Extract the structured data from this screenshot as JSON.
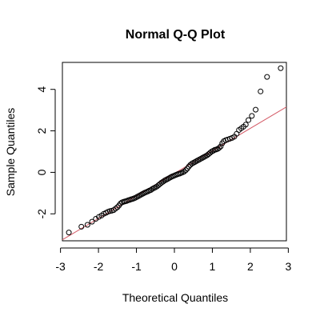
{
  "chart_data": {
    "type": "scatter",
    "title": "Normal Q-Q Plot",
    "xlabel": "Theoretical Quantiles",
    "ylabel": "Sample Quantiles",
    "xlim": [
      -2.95,
      2.95
    ],
    "ylim": [
      -3.3,
      5.3
    ],
    "x_ticks": [
      -3,
      -2,
      -1,
      0,
      1,
      2,
      3
    ],
    "x_tick_labels": [
      "-3",
      "-2",
      "-1",
      "0",
      "1",
      "2",
      "3"
    ],
    "y_ticks": [
      -2,
      0,
      2,
      4
    ],
    "y_tick_labels": [
      "-2",
      "0",
      "2",
      "4"
    ],
    "grid": false,
    "legend": "none",
    "series": [
      {
        "marker": "open-circle",
        "color": "#000000",
        "points": [
          [
            -2.78,
            -2.9
          ],
          [
            -2.45,
            -2.62
          ],
          [
            -2.29,
            -2.53
          ],
          [
            -2.17,
            -2.38
          ],
          [
            -2.07,
            -2.24
          ],
          [
            -1.99,
            -2.15
          ],
          [
            -1.92,
            -2.08
          ],
          [
            -1.86,
            -2.0
          ],
          [
            -1.8,
            -1.95
          ],
          [
            -1.75,
            -1.9
          ],
          [
            -1.7,
            -1.87
          ],
          [
            -1.65,
            -1.85
          ],
          [
            -1.6,
            -1.82
          ],
          [
            -1.55,
            -1.75
          ],
          [
            -1.5,
            -1.68
          ],
          [
            -1.46,
            -1.6
          ],
          [
            -1.42,
            -1.5
          ],
          [
            -1.38,
            -1.45
          ],
          [
            -1.34,
            -1.42
          ],
          [
            -1.3,
            -1.4
          ],
          [
            -1.26,
            -1.38
          ],
          [
            -1.22,
            -1.35
          ],
          [
            -1.18,
            -1.33
          ],
          [
            -1.14,
            -1.3
          ],
          [
            -1.1,
            -1.28
          ],
          [
            -1.06,
            -1.25
          ],
          [
            -1.02,
            -1.22
          ],
          [
            -0.98,
            -1.18
          ],
          [
            -0.94,
            -1.14
          ],
          [
            -0.9,
            -1.1
          ],
          [
            -0.86,
            -1.06
          ],
          [
            -0.82,
            -1.02
          ],
          [
            -0.78,
            -0.98
          ],
          [
            -0.74,
            -0.95
          ],
          [
            -0.7,
            -0.92
          ],
          [
            -0.66,
            -0.88
          ],
          [
            -0.62,
            -0.85
          ],
          [
            -0.58,
            -0.8
          ],
          [
            -0.54,
            -0.76
          ],
          [
            -0.5,
            -0.72
          ],
          [
            -0.46,
            -0.68
          ],
          [
            -0.42,
            -0.62
          ],
          [
            -0.38,
            -0.56
          ],
          [
            -0.34,
            -0.5
          ],
          [
            -0.3,
            -0.45
          ],
          [
            -0.26,
            -0.4
          ],
          [
            -0.22,
            -0.36
          ],
          [
            -0.18,
            -0.32
          ],
          [
            -0.14,
            -0.28
          ],
          [
            -0.1,
            -0.24
          ],
          [
            -0.06,
            -0.2
          ],
          [
            -0.02,
            -0.17
          ],
          [
            0.02,
            -0.14
          ],
          [
            0.06,
            -0.11
          ],
          [
            0.1,
            -0.08
          ],
          [
            0.14,
            -0.06
          ],
          [
            0.18,
            -0.03
          ],
          [
            0.22,
            0.0
          ],
          [
            0.26,
            0.04
          ],
          [
            0.3,
            0.1
          ],
          [
            0.34,
            0.18
          ],
          [
            0.38,
            0.28
          ],
          [
            0.42,
            0.36
          ],
          [
            0.46,
            0.42
          ],
          [
            0.5,
            0.46
          ],
          [
            0.54,
            0.5
          ],
          [
            0.58,
            0.54
          ],
          [
            0.62,
            0.58
          ],
          [
            0.66,
            0.62
          ],
          [
            0.7,
            0.66
          ],
          [
            0.74,
            0.7
          ],
          [
            0.78,
            0.74
          ],
          [
            0.82,
            0.78
          ],
          [
            0.86,
            0.82
          ],
          [
            0.9,
            0.88
          ],
          [
            0.94,
            0.94
          ],
          [
            0.98,
            1.0
          ],
          [
            1.02,
            1.04
          ],
          [
            1.06,
            1.08
          ],
          [
            1.1,
            1.1
          ],
          [
            1.14,
            1.13
          ],
          [
            1.18,
            1.18
          ],
          [
            1.22,
            1.25
          ],
          [
            1.26,
            1.4
          ],
          [
            1.3,
            1.5
          ],
          [
            1.35,
            1.55
          ],
          [
            1.4,
            1.58
          ],
          [
            1.46,
            1.62
          ],
          [
            1.52,
            1.66
          ],
          [
            1.58,
            1.72
          ],
          [
            1.64,
            1.86
          ],
          [
            1.7,
            2.04
          ],
          [
            1.76,
            2.12
          ],
          [
            1.82,
            2.2
          ],
          [
            1.88,
            2.3
          ],
          [
            1.95,
            2.52
          ],
          [
            2.04,
            2.72
          ],
          [
            2.14,
            3.02
          ],
          [
            2.27,
            3.9
          ],
          [
            2.44,
            4.6
          ],
          [
            2.8,
            5.02
          ]
        ]
      }
    ],
    "reference_line": {
      "type": "qqline",
      "color": "#d45a66",
      "slope": 1.085,
      "intercept": -0.05
    }
  }
}
